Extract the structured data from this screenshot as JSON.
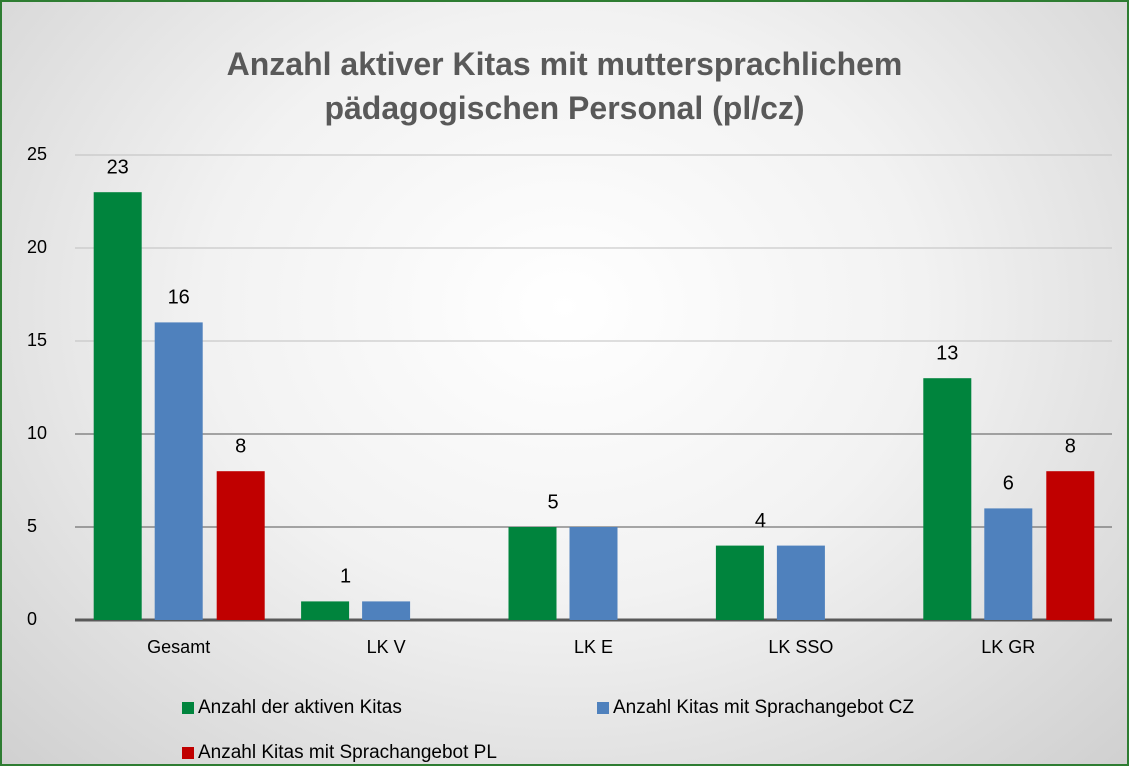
{
  "chart_data": {
    "type": "bar",
    "title": "Anzahl aktiver Kitas mit muttersprachlichem pädagogischen Personal (pl/cz)",
    "categories": [
      "Gesamt",
      "LK V",
      "LK E",
      "LK SSO",
      "LK GR"
    ],
    "series": [
      {
        "name": "Anzahl der aktiven Kitas",
        "color": "#00843d",
        "values": [
          23,
          1,
          5,
          4,
          13
        ],
        "value_labels": [
          "23",
          "1",
          "5",
          "4",
          "13"
        ]
      },
      {
        "name": "Anzahl Kitas mit Sprachangebot CZ",
        "color": "#4f81bd",
        "values": [
          16,
          1,
          5,
          4,
          6
        ],
        "value_labels": [
          "16",
          null,
          null,
          null,
          "6"
        ]
      },
      {
        "name": "Anzahl Kitas mit Sprachangebot PL",
        "color": "#c00000",
        "values": [
          8,
          0,
          0,
          0,
          8
        ],
        "value_labels": [
          "8",
          null,
          null,
          null,
          "8"
        ]
      }
    ],
    "ylim": [
      0,
      25
    ],
    "yticks": [
      0,
      5,
      10,
      15,
      20,
      25
    ],
    "grid": true,
    "legend": "bottom"
  }
}
